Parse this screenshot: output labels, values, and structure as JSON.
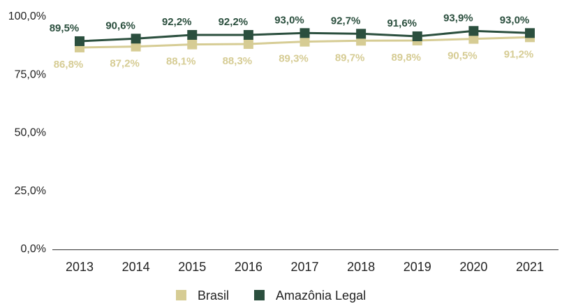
{
  "chart_data": {
    "type": "line",
    "categories": [
      "2013",
      "2014",
      "2015",
      "2016",
      "2017",
      "2018",
      "2019",
      "2020",
      "2021"
    ],
    "series": [
      {
        "name": "Brasil",
        "color": "#d6cc94",
        "values": [
          86.8,
          87.2,
          88.1,
          88.3,
          89.3,
          89.7,
          89.8,
          90.5,
          91.2
        ],
        "value_labels": [
          "86,8%",
          "87,2%",
          "88,1%",
          "88,3%",
          "89,3%",
          "89,7%",
          "89,8%",
          "90,5%",
          "91,2%"
        ]
      },
      {
        "name": "Amazônia Legal",
        "color": "#2b4f3e",
        "values": [
          89.5,
          90.6,
          92.2,
          92.2,
          93.0,
          92.7,
          91.6,
          93.9,
          93.0
        ],
        "value_labels": [
          "89,5%",
          "90,6%",
          "92,2%",
          "92,2%",
          "93,0%",
          "92,7%",
          "91,6%",
          "93,9%",
          "93,0%"
        ]
      }
    ],
    "ylim": [
      0,
      100
    ],
    "yticks": [
      {
        "value": 0,
        "label": "0,0%"
      },
      {
        "value": 25,
        "label": "25,0%"
      },
      {
        "value": 50,
        "label": "50,0%"
      },
      {
        "value": 75,
        "label": "75,0%"
      },
      {
        "value": 100,
        "label": "100,0%"
      }
    ],
    "grid": false,
    "legend": "bottom"
  }
}
